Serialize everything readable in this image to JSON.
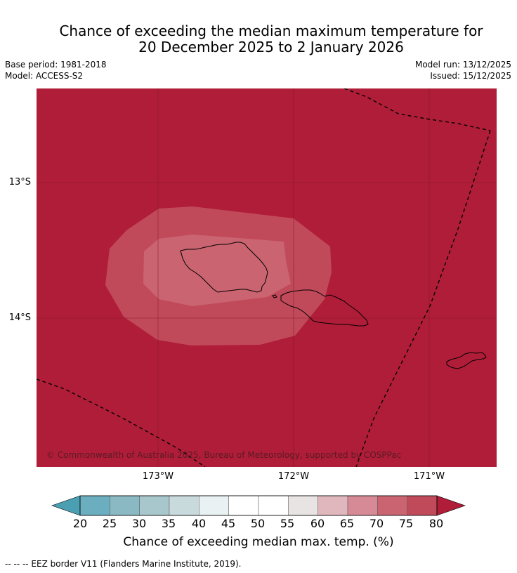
{
  "title": {
    "line1": "Chance of exceeding the median maximum temperature for",
    "line2": "20 December 2025 to 2 January 2026"
  },
  "meta": {
    "base_period": "Base period: 1981-2018",
    "model": "Model: ACCESS-S2",
    "model_run": "Model run: 13/12/2025",
    "issued": "Issued: 15/12/2025"
  },
  "map": {
    "lat_labels": [
      "13°S",
      "14°S"
    ],
    "lon_labels": [
      "173°W",
      "172°W",
      "171°W"
    ],
    "copyright": "© Commonwealth of Australia 2025, Bureau of Meteorology, supported by COSPPac",
    "background_category": "80+",
    "contours": [
      {
        "level": "75-80",
        "color": "#c14a5a"
      },
      {
        "level": "70-75",
        "color": "#ca6470"
      }
    ]
  },
  "colorbar": {
    "ticks": [
      "20",
      "25",
      "30",
      "35",
      "40",
      "45",
      "50",
      "55",
      "60",
      "65",
      "70",
      "75",
      "80"
    ],
    "colors": [
      "#4a9fb2",
      "#6aaebf",
      "#8ab8c3",
      "#a8c7cc",
      "#c9dadd",
      "#e9f1f2",
      "#ffffff",
      "#ffffff",
      "#e8e4e4",
      "#e0b7bc",
      "#d68a95",
      "#ca6470",
      "#c14a5a",
      "#b01d38"
    ],
    "label": "Chance of exceeding median max. temp. (%)"
  },
  "footnote": "--  --  -- EEZ border V11 (Flanders Marine Institute, 2019)."
}
